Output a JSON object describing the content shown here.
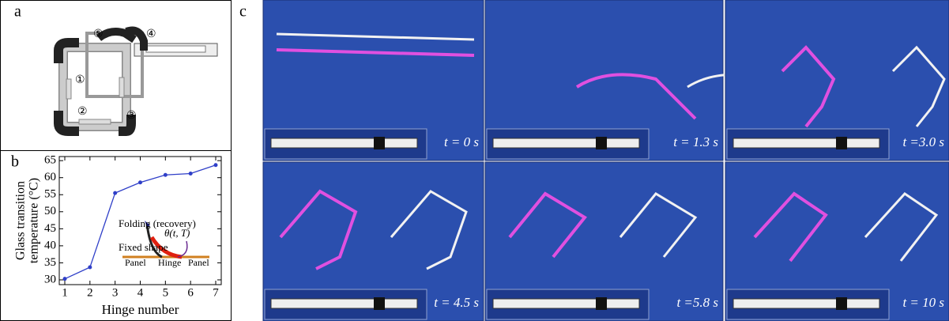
{
  "panel_labels": [
    "a",
    "b",
    "c"
  ],
  "hinge_labels": [
    "①",
    "②",
    "③",
    "④",
    "⑤"
  ],
  "chart_data": {
    "type": "line",
    "xlabel": "Hinge number",
    "ylabel": [
      "Glass transition",
      "temperature (°C)"
    ],
    "x": [
      1,
      2,
      3,
      4,
      5,
      6,
      7
    ],
    "values": [
      30.3,
      33.7,
      55.5,
      58.6,
      60.8,
      61.2,
      63.7
    ],
    "color": "#2f3fc8",
    "xlim": [
      0.78,
      7.22
    ],
    "ylim": [
      28.6,
      66.2
    ],
    "xticks": [
      1,
      2,
      3,
      4,
      5,
      6,
      7
    ],
    "yticks": [
      30,
      35,
      40,
      45,
      50,
      55,
      60,
      65
    ],
    "annotations": [
      "Folding (recovery)",
      "θ(t, T)",
      "Fixed shape",
      "Panel",
      "Hinge",
      "Panel"
    ]
  },
  "time_labels": [
    "t = 0 s",
    "t = 1.3 s",
    "t =3.0 s",
    "t = 4.5 s",
    "t =5.8 s",
    "t = 10 s"
  ]
}
